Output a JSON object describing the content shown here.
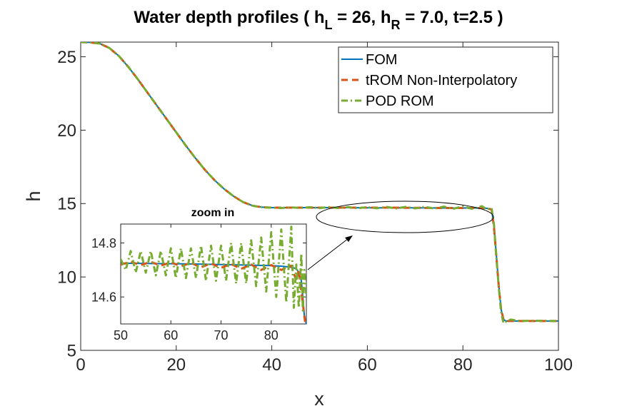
{
  "title": {
    "prefix": "Water depth profiles ( h",
    "sub_L": "L",
    "mid1": " = 26, h",
    "sub_R": "R",
    "mid2": " = 7.0, t=2.5 )"
  },
  "chart_data": [
    {
      "id": "main",
      "type": "line",
      "xlabel": "x",
      "ylabel": "h",
      "xlim": [
        0,
        100
      ],
      "ylim": [
        5,
        26
      ],
      "xticks": [
        0,
        20,
        40,
        60,
        80,
        100
      ],
      "yticks": [
        5,
        10,
        15,
        20,
        25
      ],
      "grid": false,
      "legend_position": "top-right",
      "params": {
        "h_L": 26,
        "h_R": 7.0,
        "t": 2.5
      },
      "series": [
        {
          "name": "FOM",
          "color": "#0072BD",
          "style": "solid",
          "x": [
            0,
            2,
            4,
            6,
            8,
            10,
            12,
            14,
            16,
            18,
            20,
            22,
            24,
            26,
            28,
            30,
            32,
            34,
            36,
            38,
            40,
            42,
            44,
            46,
            48,
            50,
            55,
            60,
            65,
            70,
            75,
            80,
            82,
            84,
            85,
            86,
            86.5,
            87,
            87.5,
            88,
            88.5,
            89,
            90,
            92,
            95,
            100
          ],
          "y": [
            26.0,
            25.98,
            25.9,
            25.6,
            25.05,
            24.3,
            23.45,
            22.55,
            21.65,
            20.75,
            19.85,
            18.95,
            18.1,
            17.3,
            16.6,
            16.0,
            15.5,
            15.1,
            14.85,
            14.75,
            14.72,
            14.72,
            14.72,
            14.72,
            14.72,
            14.72,
            14.72,
            14.71,
            14.71,
            14.71,
            14.7,
            14.7,
            14.7,
            14.69,
            14.68,
            14.6,
            13.5,
            11.5,
            9.5,
            7.8,
            7.1,
            7.0,
            7.0,
            7.0,
            7.0,
            7.0
          ]
        },
        {
          "name": "tROM Non-Interpolatory",
          "color": "#D95319",
          "style": "dashed",
          "x": [
            0,
            2,
            4,
            6,
            8,
            10,
            12,
            14,
            16,
            18,
            20,
            22,
            24,
            26,
            28,
            30,
            32,
            34,
            36,
            38,
            40,
            42,
            44,
            46,
            48,
            50,
            55,
            60,
            65,
            70,
            75,
            80,
            82,
            84,
            85,
            86,
            86.5,
            87,
            87.5,
            88,
            88.5,
            89,
            90,
            92,
            95,
            100
          ],
          "y": [
            26.0,
            25.98,
            25.9,
            25.6,
            25.05,
            24.3,
            23.45,
            22.55,
            21.65,
            20.75,
            19.85,
            18.95,
            18.1,
            17.3,
            16.6,
            16.0,
            15.5,
            15.1,
            14.85,
            14.75,
            14.72,
            14.72,
            14.72,
            14.72,
            14.72,
            14.72,
            14.72,
            14.72,
            14.72,
            14.71,
            14.7,
            14.7,
            14.7,
            14.69,
            14.67,
            14.6,
            13.4,
            11.4,
            9.4,
            7.8,
            7.1,
            7.0,
            7.0,
            7.0,
            7.0,
            7.0
          ]
        },
        {
          "name": "POD ROM",
          "color": "#77AC30",
          "style": "dashdot",
          "x": [
            0,
            2,
            4,
            6,
            8,
            10,
            12,
            14,
            16,
            18,
            20,
            22,
            24,
            26,
            28,
            30,
            32,
            34,
            36,
            38,
            40,
            42,
            44,
            46,
            48,
            50,
            52,
            54,
            56,
            58,
            60,
            62,
            64,
            66,
            68,
            70,
            72,
            74,
            76,
            78,
            80,
            82,
            84,
            85,
            86,
            86.5,
            87,
            87.5,
            88,
            88.5,
            89,
            90,
            92,
            95,
            100
          ],
          "y": [
            26.0,
            25.98,
            25.9,
            25.6,
            25.05,
            24.3,
            23.45,
            22.55,
            21.65,
            20.75,
            19.85,
            18.95,
            18.1,
            17.3,
            16.6,
            16.0,
            15.5,
            15.1,
            14.85,
            14.75,
            14.72,
            14.7,
            14.74,
            14.7,
            14.75,
            14.69,
            14.76,
            14.69,
            14.76,
            14.68,
            14.76,
            14.68,
            14.77,
            14.67,
            14.77,
            14.67,
            14.78,
            14.66,
            14.79,
            14.65,
            14.8,
            14.64,
            14.82,
            14.6,
            14.7,
            13.6,
            11.4,
            9.3,
            7.6,
            6.85,
            6.95,
            7.1,
            7.0,
            7.02,
            7.0
          ]
        }
      ]
    },
    {
      "id": "inset",
      "type": "line",
      "title": "zoom in",
      "xlim": [
        50,
        87
      ],
      "ylim": [
        14.5,
        14.87
      ],
      "xticks": [
        50,
        60,
        70,
        80
      ],
      "yticks": [
        14.6,
        14.8
      ],
      "grid": false,
      "series": [
        {
          "name": "FOM",
          "color": "#0072BD",
          "style": "solid",
          "x": [
            50,
            55,
            60,
            65,
            70,
            75,
            80,
            82,
            84,
            85,
            85.5,
            86,
            86.3,
            86.6,
            87
          ],
          "y": [
            14.725,
            14.724,
            14.723,
            14.722,
            14.72,
            14.718,
            14.716,
            14.714,
            14.71,
            14.705,
            14.69,
            14.66,
            14.6,
            14.53,
            14.5
          ]
        },
        {
          "name": "tROM Non-Interpolatory",
          "color": "#D95319",
          "style": "dashed",
          "x": [
            50,
            52,
            54,
            56,
            58,
            60,
            62,
            64,
            66,
            68,
            70,
            72,
            74,
            76,
            78,
            80,
            82,
            84,
            85,
            85.5,
            86,
            86.4,
            86.8,
            87
          ],
          "y": [
            14.72,
            14.73,
            14.718,
            14.73,
            14.716,
            14.728,
            14.714,
            14.726,
            14.71,
            14.724,
            14.708,
            14.722,
            14.704,
            14.72,
            14.7,
            14.718,
            14.7,
            14.716,
            14.66,
            14.7,
            14.62,
            14.56,
            14.5,
            14.5
          ]
        },
        {
          "name": "POD ROM",
          "color": "#77AC30",
          "style": "dashdot",
          "amplitudes": "increasing",
          "x": [
            50,
            51,
            52,
            53,
            54,
            55,
            56,
            57,
            58,
            59,
            60,
            61,
            62,
            63,
            64,
            65,
            66,
            67,
            68,
            69,
            70,
            71,
            72,
            73,
            74,
            75,
            76,
            77,
            78,
            79,
            80,
            81,
            82,
            83,
            84,
            84.5,
            85,
            85.5,
            86,
            86.3,
            86.6,
            87
          ],
          "y": [
            14.74,
            14.7,
            14.77,
            14.69,
            14.77,
            14.69,
            14.77,
            14.68,
            14.77,
            14.68,
            14.78,
            14.67,
            14.78,
            14.67,
            14.78,
            14.67,
            14.79,
            14.66,
            14.79,
            14.66,
            14.79,
            14.66,
            14.8,
            14.65,
            14.8,
            14.65,
            14.81,
            14.64,
            14.82,
            14.62,
            14.84,
            14.6,
            14.85,
            14.58,
            14.86,
            14.56,
            14.72,
            14.56,
            14.76,
            14.55,
            14.7,
            14.6
          ]
        }
      ]
    }
  ]
}
